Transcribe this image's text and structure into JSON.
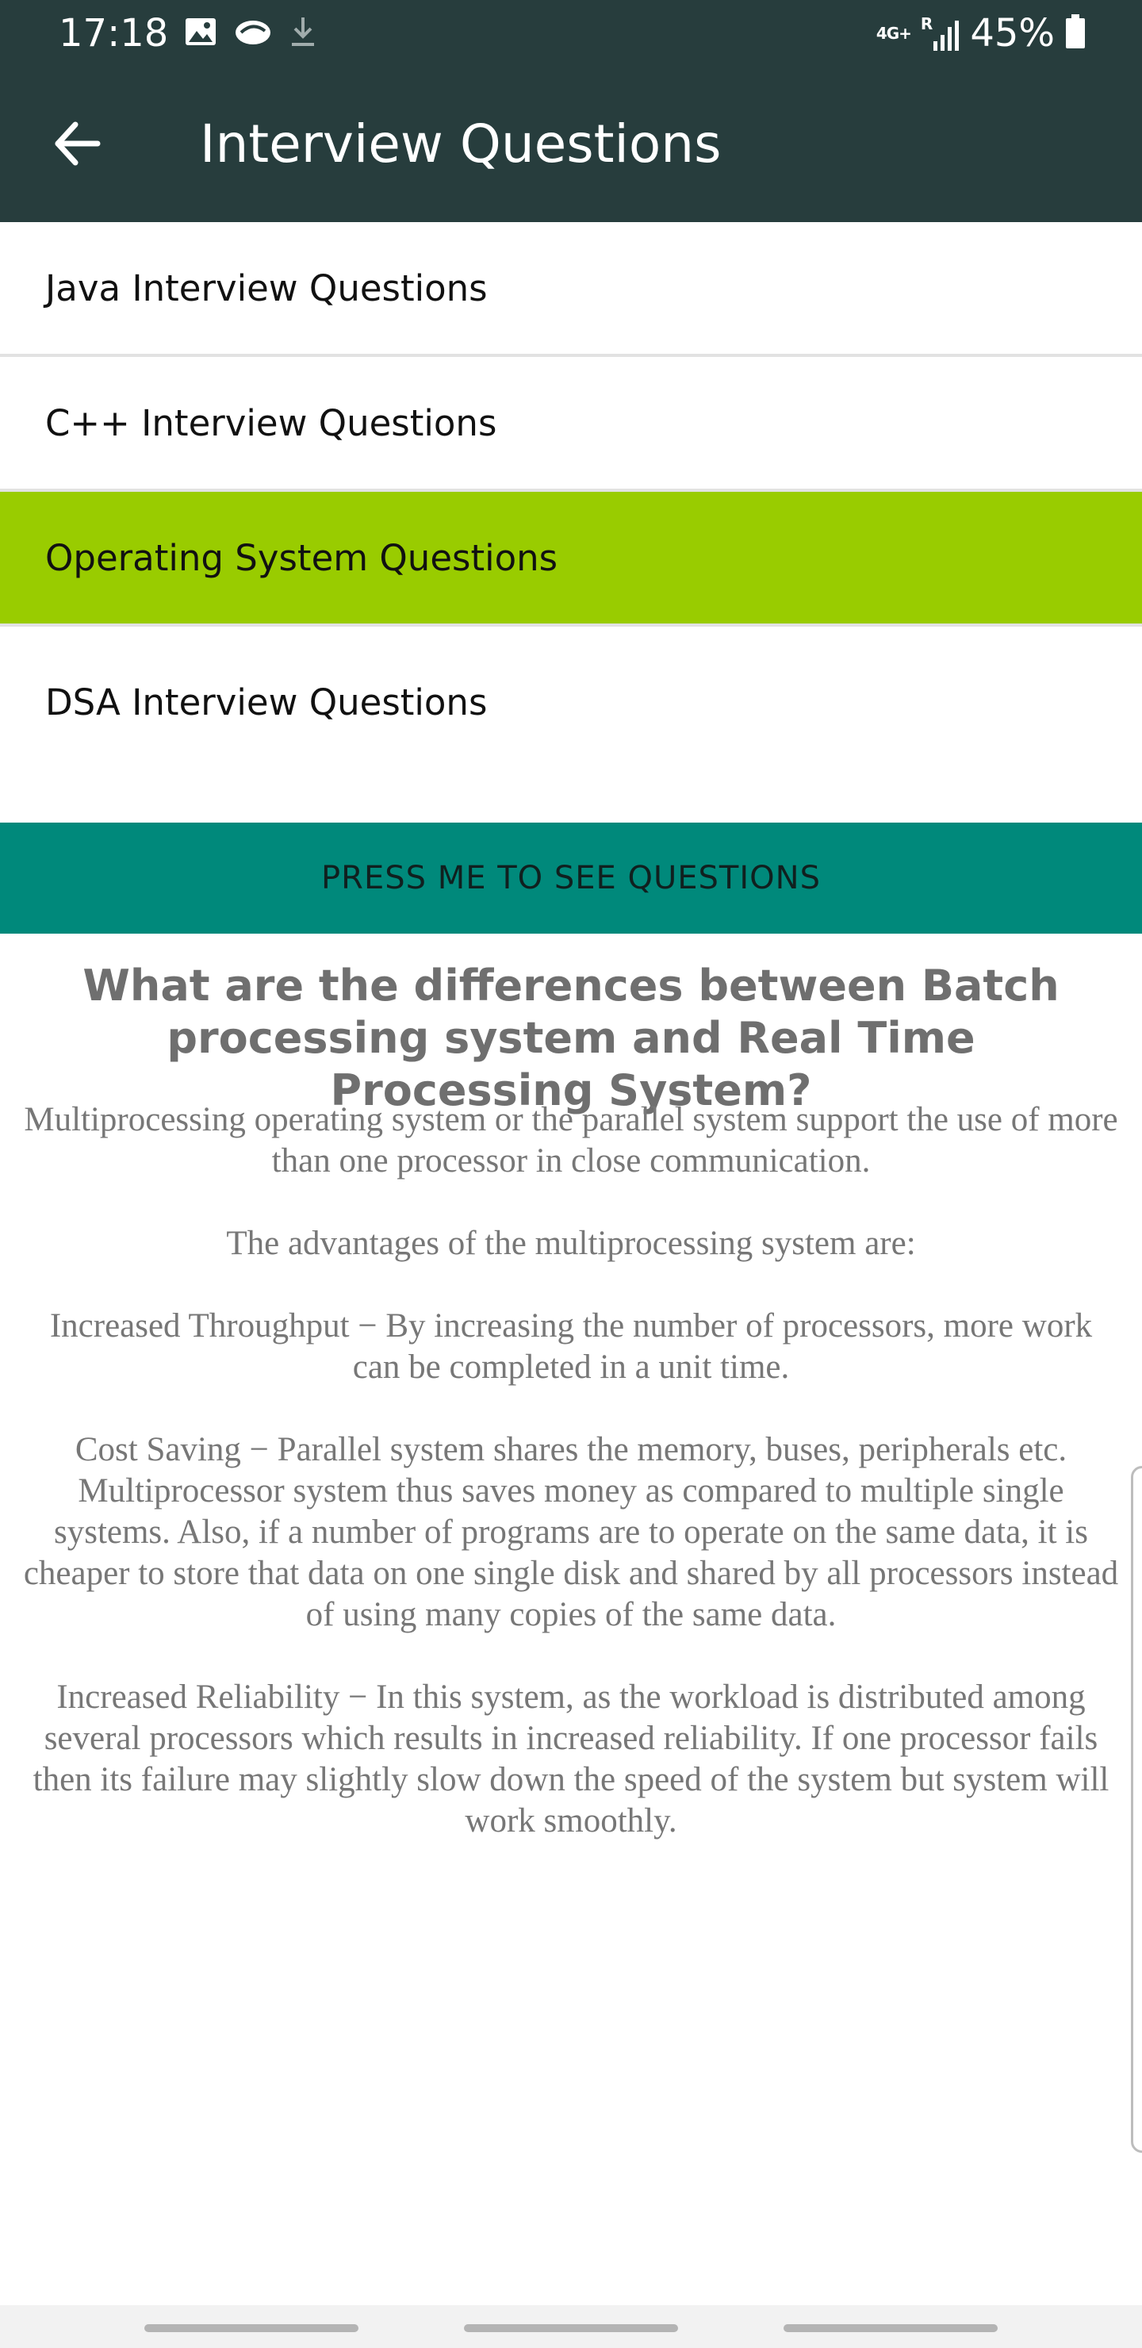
{
  "status_bar": {
    "time": "17:18",
    "network": "4G+",
    "roaming": "R",
    "battery": "45%",
    "icons_left": [
      "image-icon",
      "cloud-icon",
      "download-icon"
    ],
    "icons_right": [
      "network-icon",
      "signal-icon",
      "battery-icon"
    ]
  },
  "app_bar": {
    "title": "Interview Questions",
    "back_icon": "arrow-left-icon",
    "background": "#273d3d"
  },
  "list": {
    "items": [
      {
        "label": "Java Interview Questions",
        "selected": false
      },
      {
        "label": "C++ Interview Questions",
        "selected": false
      },
      {
        "label": "Operating System Questions",
        "selected": true
      },
      {
        "label": "DSA Interview Questions",
        "selected": false
      }
    ],
    "selected_color": "#99cc00"
  },
  "button": {
    "label": "PRESS ME TO SEE QUESTIONS",
    "color": "#00897b"
  },
  "content": {
    "question": "What are the differences between Batch processing system and Real Time Processing System?",
    "answer_paragraphs": [
      "Multiprocessing operating system or the parallel system support the use of more than one processor in close communication.",
      "The advantages of the multiprocessing system are:",
      "Increased Throughput − By increasing the number of processors, more work can be completed in a unit time.",
      "Cost Saving − Parallel system shares the memory, buses, peripherals etc. Multiprocessor system thus saves money as compared to multiple single systems. Also, if a number of programs are to operate on the same data, it is cheaper to store that data on one single disk and shared by all processors instead of using many copies of the same data.",
      "Increased Reliability − In this system, as the workload is distributed among several processors which results in increased reliability. If one processor fails then its failure may slightly slow down the speed of the system but system will work smoothly."
    ]
  }
}
